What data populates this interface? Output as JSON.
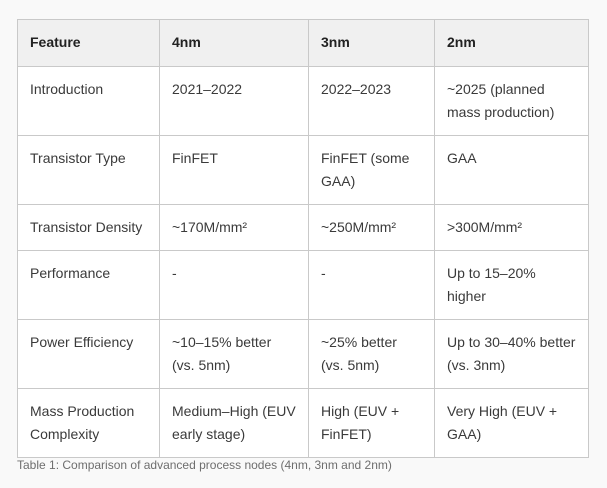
{
  "table": {
    "headers": [
      "Feature",
      "4nm",
      "3nm",
      "2nm"
    ],
    "rows": [
      [
        "Introduction",
        "2021–2022",
        "2022–2023",
        "~2025 (planned mass production)"
      ],
      [
        "Transistor Type",
        "FinFET",
        "FinFET (some GAA)",
        "GAA"
      ],
      [
        "Transistor Density",
        "~170M/mm²",
        "~250M/mm²",
        ">300M/mm²"
      ],
      [
        "Performance",
        "-",
        "-",
        "Up to 15–20% higher"
      ],
      [
        "Power Efficiency",
        "~10–15% better (vs. 5nm)",
        "~25% better (vs. 5nm)",
        "Up to 30–40% better (vs. 3nm)"
      ],
      [
        "Mass Production Complexity",
        "Medium–High (EUV early stage)",
        "High (EUV + FinFET)",
        "Very High (EUV + GAA)"
      ]
    ]
  },
  "caption": "Table 1: Comparison of advanced process nodes (4nm, 3nm and 2nm)"
}
